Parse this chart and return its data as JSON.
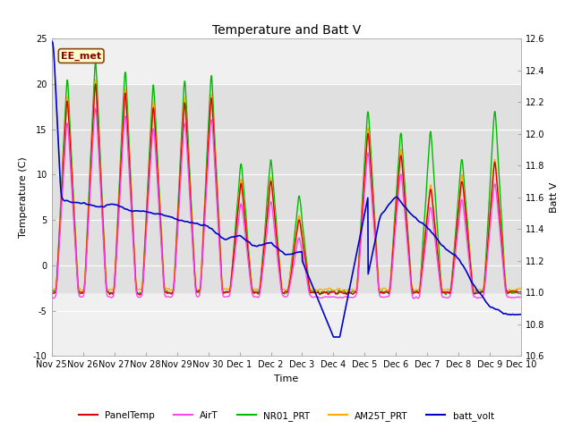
{
  "title": "Temperature and Batt V",
  "xlabel": "Time",
  "ylabel_left": "Temperature (C)",
  "ylabel_right": "Batt V",
  "ylim_left": [
    -10,
    25
  ],
  "ylim_right": [
    10.6,
    12.6
  ],
  "yticks_left": [
    -10,
    -5,
    0,
    5,
    10,
    15,
    20,
    25
  ],
  "yticks_right": [
    10.6,
    10.8,
    11.0,
    11.2,
    11.4,
    11.6,
    11.8,
    12.0,
    12.2,
    12.4,
    12.6
  ],
  "xtick_labels": [
    "Nov 25",
    "Nov 26",
    "Nov 27",
    "Nov 28",
    "Nov 29",
    "Nov 30",
    "Dec 1",
    "Dec 2",
    "Dec 3",
    "Dec 4",
    "Dec 5",
    "Dec 6",
    "Dec 7",
    "Dec 8",
    "Dec 9",
    "Dec 10"
  ],
  "shaded_band": [
    -3,
    20
  ],
  "annotation_text": "EE_met",
  "annotation_bg": "#ffffcc",
  "annotation_edge": "#8B4513",
  "annotation_color": "#8B0000",
  "fig_bg_color": "#ffffff",
  "plot_bg_color": "#f0f0f0",
  "band_color": "#e0e0e0",
  "grid_color": "#ffffff",
  "series": {
    "PanelTemp": {
      "color": "#dd0000",
      "lw": 1.0
    },
    "AirT": {
      "color": "#ff44ee",
      "lw": 1.0
    },
    "NR01_PRT": {
      "color": "#00bb00",
      "lw": 1.0
    },
    "AM25T_PRT": {
      "color": "#ffaa00",
      "lw": 1.0
    },
    "batt_volt": {
      "color": "#0000cc",
      "lw": 1.2
    }
  },
  "legend_entries": [
    "PanelTemp",
    "AirT",
    "NR01_PRT",
    "AM25T_PRT",
    "batt_volt"
  ],
  "legend_colors": [
    "#dd0000",
    "#ff44ee",
    "#00bb00",
    "#ffaa00",
    "#0000cc"
  ],
  "title_fontsize": 10,
  "axis_fontsize": 8,
  "tick_fontsize": 7
}
